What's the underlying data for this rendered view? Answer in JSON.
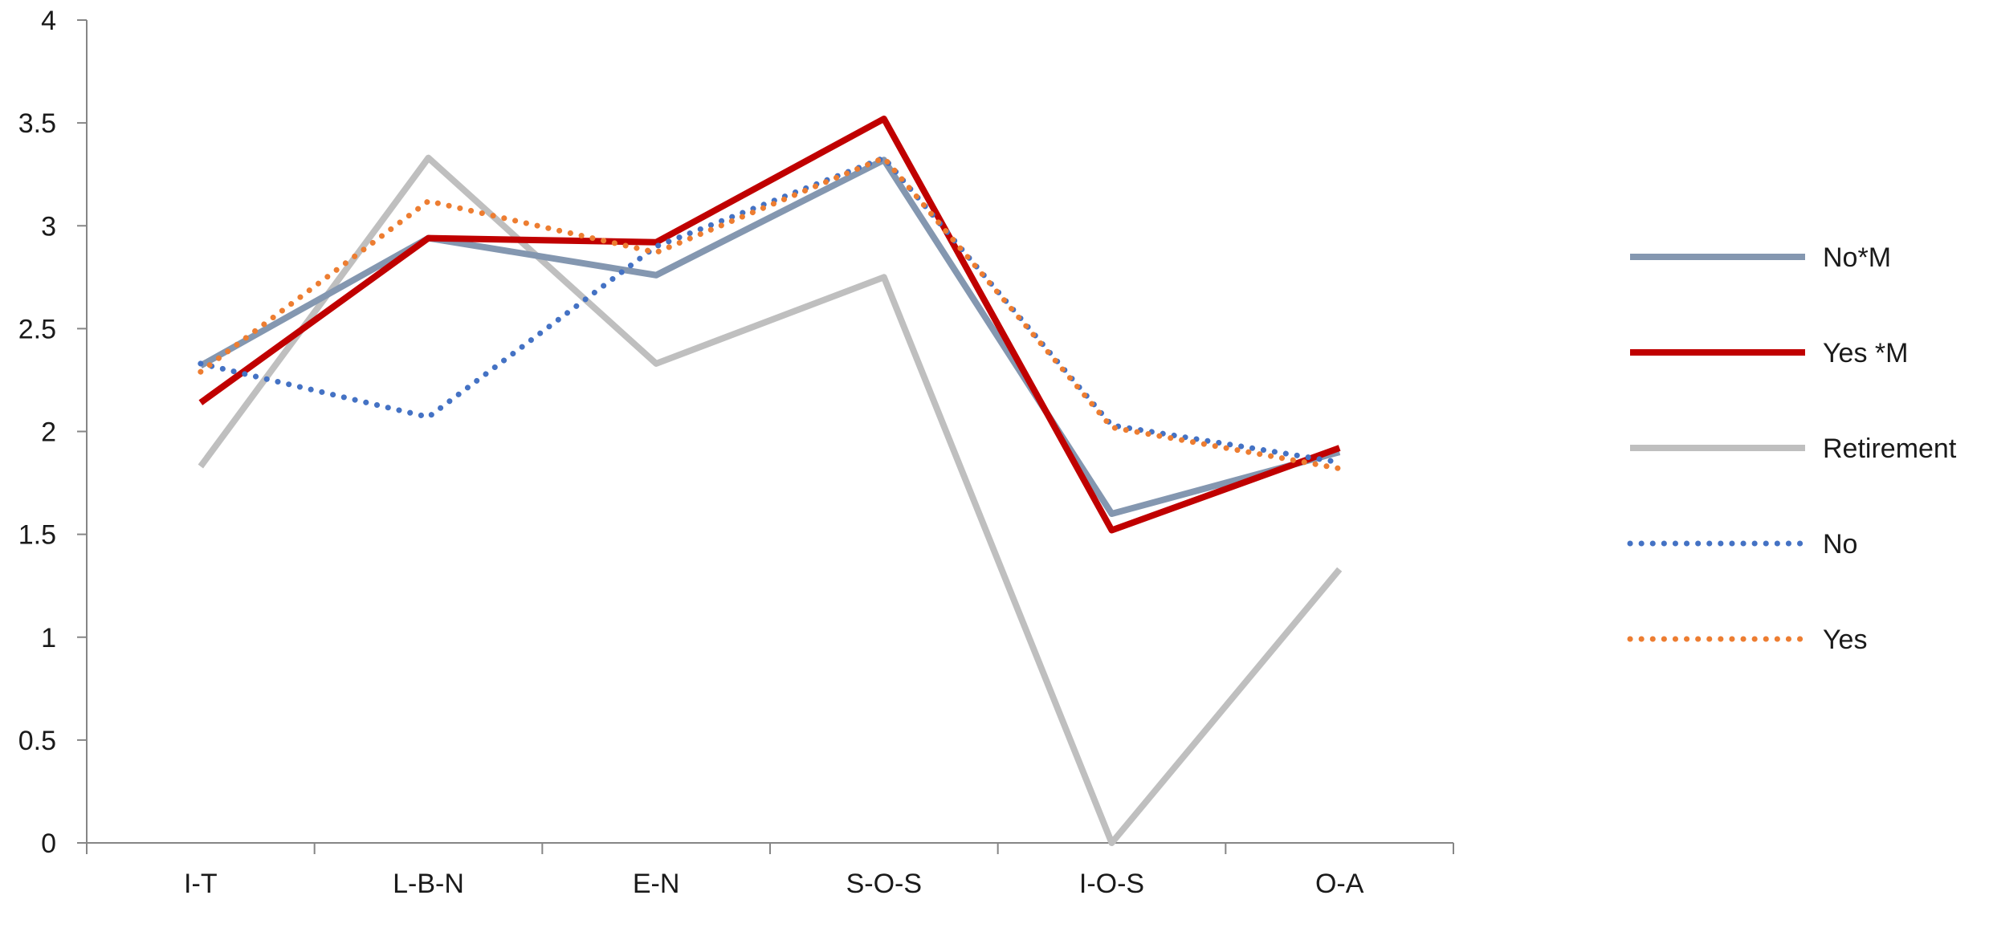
{
  "chart_data": {
    "type": "line",
    "title": "",
    "xlabel": "",
    "ylabel": "",
    "categories": [
      "I-T",
      "L-B-N",
      "E-N",
      "S-O-S",
      "I-O-S",
      "O-A"
    ],
    "ylim": [
      0,
      4
    ],
    "yticks": [
      "0",
      "0.5",
      "1",
      "1.5",
      "2",
      "2.5",
      "3",
      "3.5",
      "4"
    ],
    "grid": false,
    "legend_position": "right",
    "series": [
      {
        "name": "No*M",
        "values": [
          2.32,
          2.94,
          2.76,
          3.32,
          1.6,
          1.9
        ],
        "color": "#8497b0",
        "style": "solid"
      },
      {
        "name": "Yes *M",
        "values": [
          2.14,
          2.94,
          2.92,
          3.52,
          1.52,
          1.92
        ],
        "color": "#c00000",
        "style": "solid"
      },
      {
        "name": "Retirement",
        "values": [
          1.83,
          3.33,
          2.33,
          2.75,
          0.0,
          1.33
        ],
        "color": "#bfbfbf",
        "style": "solid"
      },
      {
        "name": "No",
        "values": [
          2.33,
          2.07,
          2.9,
          3.33,
          2.03,
          1.85
        ],
        "color": "#4472c4",
        "style": "dotted"
      },
      {
        "name": "Yes",
        "values": [
          2.29,
          3.12,
          2.87,
          3.33,
          2.02,
          1.82
        ],
        "color": "#ed7d31",
        "style": "dotted"
      }
    ]
  }
}
